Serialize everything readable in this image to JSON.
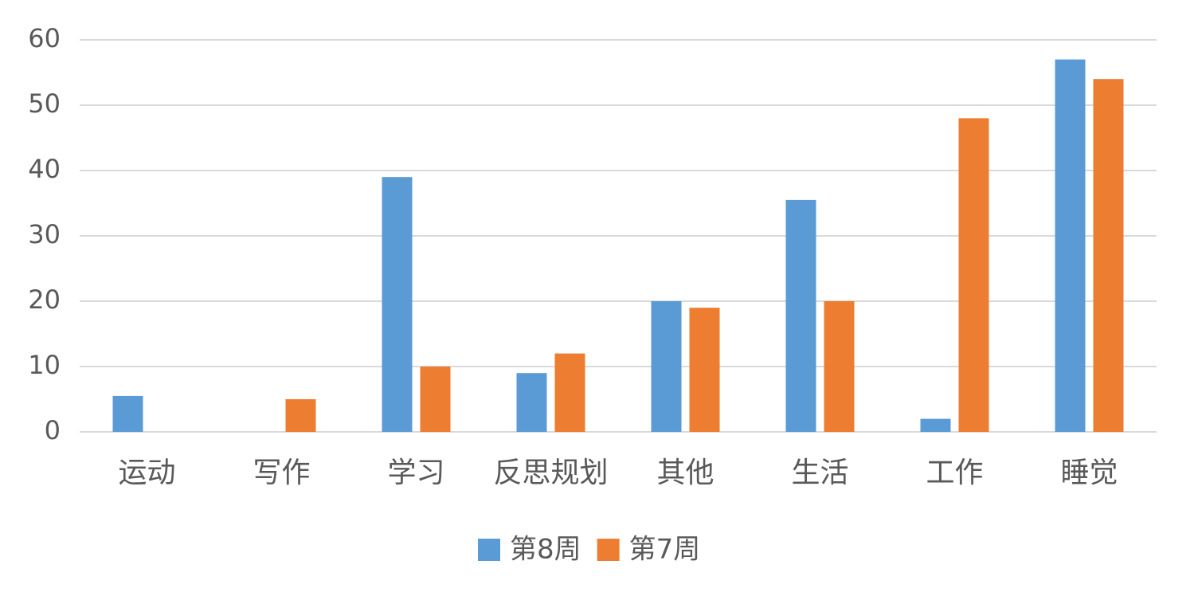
{
  "chart_data": {
    "type": "bar",
    "categories": [
      "运动",
      "写作",
      "学习",
      "反思规划",
      "其他",
      "生活",
      "工作",
      "睡觉"
    ],
    "series": [
      {
        "name": "第8周",
        "color": "#5b9bd5",
        "values": [
          5.5,
          0,
          39,
          9,
          20,
          35.5,
          2,
          57
        ]
      },
      {
        "name": "第7周",
        "color": "#ed7d31",
        "values": [
          0,
          5,
          10,
          12,
          19,
          20,
          48,
          54
        ]
      }
    ],
    "ylim": [
      0,
      60
    ],
    "yticks": [
      0,
      10,
      20,
      30,
      40,
      50,
      60
    ],
    "grid": true,
    "legend": "bottom"
  }
}
